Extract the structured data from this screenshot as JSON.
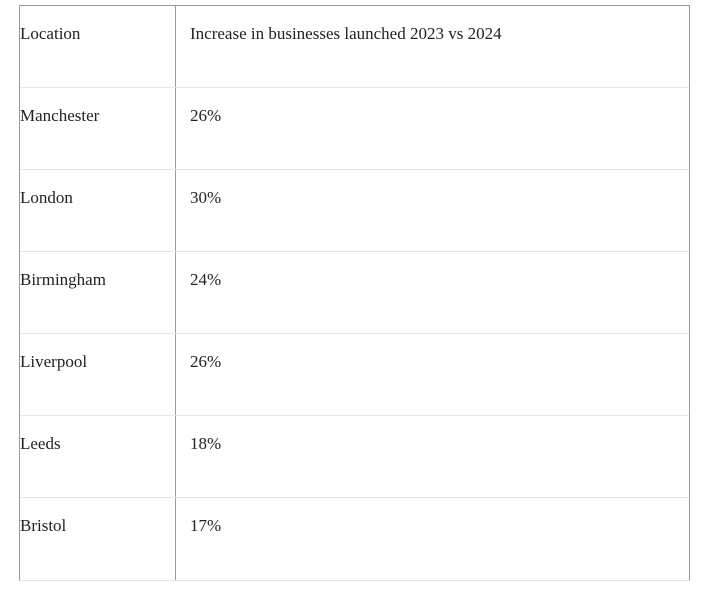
{
  "table": {
    "header": [
      "Location",
      "Increase in businesses launched 2023 vs 2024"
    ],
    "rows": [
      [
        "Manchester",
        "26%"
      ],
      [
        "London",
        "30%"
      ],
      [
        "Birmingham",
        "24%"
      ],
      [
        "Liverpool",
        "26%"
      ],
      [
        "Leeds",
        "18%"
      ],
      [
        "Bristol",
        "17%"
      ]
    ]
  }
}
